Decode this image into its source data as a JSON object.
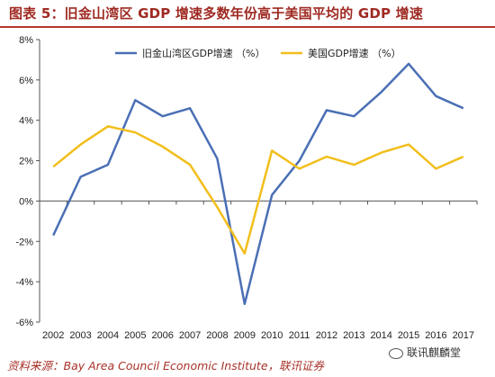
{
  "title": "图表 5：旧金山湾区 GDP 增速多数年份高于美国平均的 GDP 增速",
  "source": "资料来源：Bay Area Council Economic Institute，联讯证券",
  "watermark": "联讯麒麟堂",
  "colors": {
    "title": "#9f2a22",
    "series_bay": "#4a6fb5",
    "series_us": "#f2be1b"
  },
  "chart_data": {
    "type": "line",
    "x": [
      "2002",
      "2003",
      "2004",
      "2005",
      "2006",
      "2007",
      "2008",
      "2009",
      "2010",
      "2011",
      "2012",
      "2013",
      "2014",
      "2015",
      "2016",
      "2017"
    ],
    "series": [
      {
        "name": "旧金山湾区GDP增速 （%）",
        "values": [
          -1.7,
          1.2,
          1.8,
          5.0,
          4.2,
          4.6,
          2.1,
          -5.1,
          0.3,
          2.0,
          4.5,
          4.2,
          5.4,
          6.8,
          5.2,
          4.6
        ]
      },
      {
        "name": "美国GDP增速 （%）",
        "values": [
          1.7,
          2.8,
          3.7,
          3.4,
          2.7,
          1.8,
          -0.3,
          -2.6,
          2.5,
          1.6,
          2.2,
          1.8,
          2.4,
          2.8,
          1.6,
          2.2
        ]
      }
    ],
    "ylim": [
      -6,
      8
    ],
    "yticks": [
      "-6%",
      "-4%",
      "-2%",
      "0%",
      "2%",
      "4%",
      "6%",
      "8%"
    ],
    "ytick_values": [
      -6,
      -4,
      -2,
      0,
      2,
      4,
      6,
      8
    ],
    "xlabel": "",
    "ylabel": "",
    "grid": false,
    "legend": "top-center"
  }
}
